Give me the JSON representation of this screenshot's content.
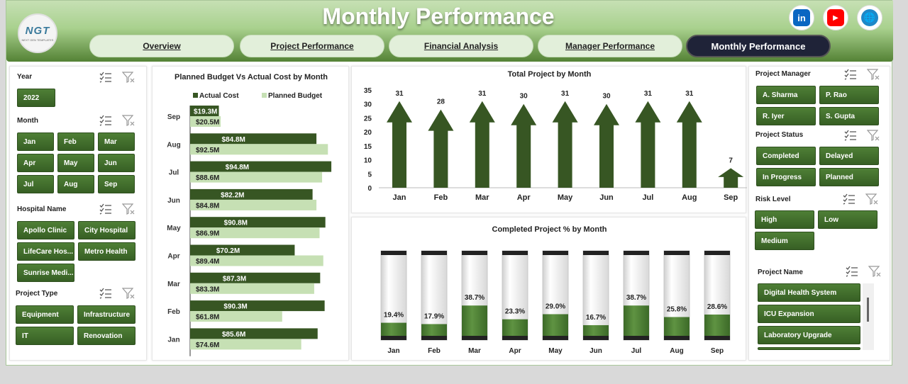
{
  "header": {
    "title": "Monthly Performance",
    "logo_text": "NGT",
    "logo_sub": "NEXT GEN TEMPLATES",
    "social": [
      {
        "name": "linkedin-icon",
        "glyph": "in",
        "color": "#0a66c2"
      },
      {
        "name": "youtube-icon",
        "glyph": "▶",
        "color": "#ff0000"
      },
      {
        "name": "website-globe-icon",
        "glyph": "🌐",
        "color": "#1e88c8"
      }
    ]
  },
  "tabs": [
    {
      "label": "Overview",
      "active": false
    },
    {
      "label": "Project Performance",
      "active": false
    },
    {
      "label": "Financial Analysis",
      "active": false
    },
    {
      "label": "Manager Performance",
      "active": false
    },
    {
      "label": "Monthly Performance",
      "active": true
    }
  ],
  "left_slicers": {
    "year": {
      "title": "Year",
      "items": [
        "2022"
      ]
    },
    "month": {
      "title": "Month",
      "items": [
        "Jan",
        "Feb",
        "Mar",
        "Apr",
        "May",
        "Jun",
        "Jul",
        "Aug",
        "Sep"
      ]
    },
    "hospital": {
      "title": "Hospital Name",
      "items": [
        "Apollo Clinic",
        "City Hospital",
        "LifeCare Hos...",
        "Metro Health",
        "Sunrise Medi..."
      ]
    },
    "project_type": {
      "title": "Project Type",
      "items": [
        "Equipment",
        "Infrastructure",
        "IT",
        "Renovation"
      ]
    }
  },
  "right_slicers": {
    "manager": {
      "title": "Project Manager",
      "items": [
        "A. Sharma",
        "P. Rao",
        "R. Iyer",
        "S. Gupta"
      ]
    },
    "status": {
      "title": "Project Status",
      "items": [
        "Completed",
        "Delayed",
        "In Progress",
        "Planned"
      ]
    },
    "risk": {
      "title": "Risk Level",
      "items": [
        "High",
        "Low",
        "Medium"
      ]
    },
    "project_name": {
      "title": "Project Name",
      "items": [
        "Digital Health System",
        "ICU Expansion",
        "Laboratory Upgrade"
      ]
    }
  },
  "colors": {
    "dark_green": "#375623",
    "light_green": "#c6e0b4",
    "mid_green": "#548235"
  },
  "chart_data": [
    {
      "type": "bar",
      "title": "Planned Budget Vs Actual Cost by Month",
      "orientation": "horizontal",
      "categories": [
        "Sep",
        "Aug",
        "Jul",
        "Jun",
        "May",
        "Apr",
        "Mar",
        "Feb",
        "Jan"
      ],
      "series": [
        {
          "name": "Actual Cost",
          "values": [
            19.3,
            84.8,
            94.8,
            82.2,
            90.8,
            70.2,
            87.3,
            90.3,
            85.6
          ],
          "labels": [
            "$19.3M",
            "$84.8M",
            "$94.8M",
            "$82.2M",
            "$90.8M",
            "$70.2M",
            "$87.3M",
            "$90.3M",
            "$85.6M"
          ]
        },
        {
          "name": "Planned Budget",
          "values": [
            20.5,
            92.5,
            88.6,
            84.8,
            86.9,
            89.4,
            83.3,
            61.8,
            74.6
          ],
          "labels": [
            "$20.5M",
            "$92.5M",
            "$88.6M",
            "$84.8M",
            "$86.9M",
            "$89.4M",
            "$83.3M",
            "$61.8M",
            "$74.6M"
          ]
        }
      ],
      "legend": "top"
    },
    {
      "type": "bar",
      "title": "Total Project by Month",
      "categories": [
        "Jan",
        "Feb",
        "Mar",
        "Apr",
        "May",
        "Jun",
        "Jul",
        "Aug",
        "Sep"
      ],
      "values": [
        31,
        28,
        31,
        30,
        31,
        30,
        31,
        31,
        7
      ],
      "yticks": [
        0,
        5,
        10,
        15,
        20,
        25,
        30,
        35
      ],
      "ylim": [
        0,
        35
      ]
    },
    {
      "type": "bar",
      "title": "Completed Project % by Month",
      "categories": [
        "Jan",
        "Feb",
        "Mar",
        "Apr",
        "May",
        "Jun",
        "Jul",
        "Aug",
        "Sep"
      ],
      "values": [
        19.4,
        17.9,
        38.7,
        23.3,
        29.0,
        16.7,
        38.7,
        25.8,
        28.6
      ],
      "labels": [
        "19.4%",
        "17.9%",
        "38.7%",
        "23.3%",
        "29.0%",
        "16.7%",
        "38.7%",
        "25.8%",
        "28.6%"
      ],
      "ylim": [
        0,
        100
      ]
    }
  ]
}
